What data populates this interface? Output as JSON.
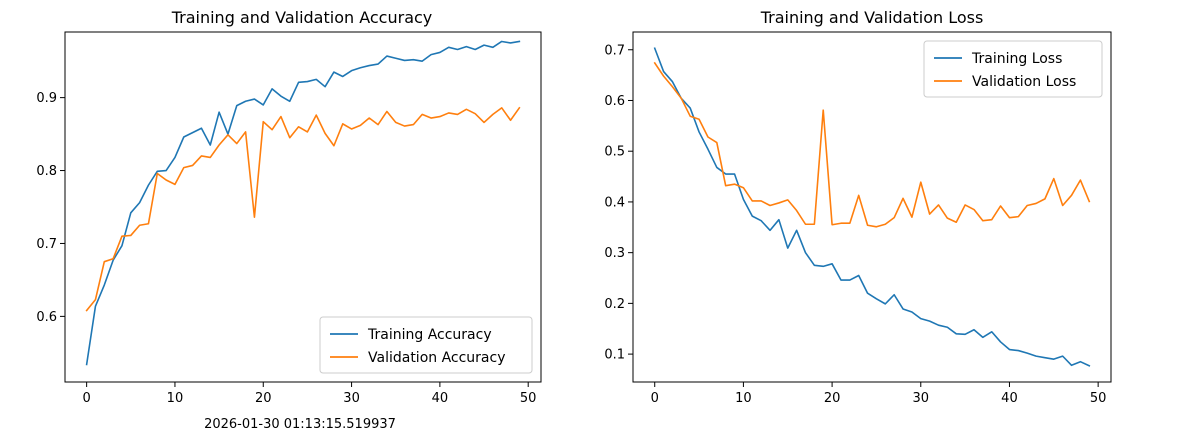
{
  "caption": "2026-01-30 01:13:15.519937",
  "chart_data": [
    {
      "type": "line",
      "title": "Training and Validation Accuracy",
      "xlabel": "",
      "ylabel": "",
      "xlim": [
        -2.45,
        51.45
      ],
      "ylim": [
        0.51,
        0.99
      ],
      "xticks": [
        0,
        10,
        20,
        30,
        40,
        50
      ],
      "yticks": [
        0.6,
        0.7,
        0.8,
        0.9
      ],
      "ytick_labels": [
        "0.6",
        "0.7",
        "0.8",
        "0.9"
      ],
      "legend_position": "lower-right",
      "x": [
        0,
        1,
        2,
        3,
        4,
        5,
        6,
        7,
        8,
        9,
        10,
        11,
        12,
        13,
        14,
        15,
        16,
        17,
        18,
        19,
        20,
        21,
        22,
        23,
        24,
        25,
        26,
        27,
        28,
        29,
        30,
        31,
        32,
        33,
        34,
        35,
        36,
        37,
        38,
        39,
        40,
        41,
        42,
        43,
        44,
        45,
        46,
        47,
        48,
        49
      ],
      "series": [
        {
          "name": "Training Accuracy",
          "color": "#1f77b4",
          "values": [
            0.534,
            0.614,
            0.643,
            0.677,
            0.697,
            0.742,
            0.756,
            0.78,
            0.799,
            0.8,
            0.818,
            0.846,
            0.852,
            0.858,
            0.835,
            0.88,
            0.85,
            0.889,
            0.895,
            0.898,
            0.89,
            0.912,
            0.902,
            0.895,
            0.921,
            0.922,
            0.925,
            0.915,
            0.935,
            0.929,
            0.937,
            0.941,
            0.944,
            0.946,
            0.957,
            0.954,
            0.951,
            0.952,
            0.95,
            0.959,
            0.962,
            0.969,
            0.966,
            0.97,
            0.966,
            0.972,
            0.969,
            0.977,
            0.975,
            0.977
          ]
        },
        {
          "name": "Validation Accuracy",
          "color": "#ff7f0e",
          "values": [
            0.608,
            0.623,
            0.675,
            0.679,
            0.71,
            0.711,
            0.725,
            0.727,
            0.796,
            0.787,
            0.781,
            0.804,
            0.807,
            0.82,
            0.818,
            0.835,
            0.849,
            0.837,
            0.853,
            0.736,
            0.867,
            0.856,
            0.874,
            0.845,
            0.86,
            0.853,
            0.876,
            0.851,
            0.834,
            0.864,
            0.857,
            0.862,
            0.872,
            0.863,
            0.881,
            0.866,
            0.861,
            0.863,
            0.877,
            0.872,
            0.874,
            0.879,
            0.877,
            0.884,
            0.878,
            0.866,
            0.877,
            0.886,
            0.869,
            0.886
          ]
        }
      ]
    },
    {
      "type": "line",
      "title": "Training and Validation Loss",
      "xlabel": "",
      "ylabel": "",
      "xlim": [
        -2.45,
        51.45
      ],
      "ylim": [
        0.045,
        0.735
      ],
      "xticks": [
        0,
        10,
        20,
        30,
        40,
        50
      ],
      "yticks": [
        0.1,
        0.2,
        0.3,
        0.4,
        0.5,
        0.6,
        0.7
      ],
      "ytick_labels": [
        "0.1",
        "0.2",
        "0.3",
        "0.4",
        "0.5",
        "0.6",
        "0.7"
      ],
      "legend_position": "upper-right",
      "x": [
        0,
        1,
        2,
        3,
        4,
        5,
        6,
        7,
        8,
        9,
        10,
        11,
        12,
        13,
        14,
        15,
        16,
        17,
        18,
        19,
        20,
        21,
        22,
        23,
        24,
        25,
        26,
        27,
        28,
        29,
        30,
        31,
        32,
        33,
        34,
        35,
        36,
        37,
        38,
        39,
        40,
        41,
        42,
        43,
        44,
        45,
        46,
        47,
        48,
        49
      ],
      "series": [
        {
          "name": "Training Loss",
          "color": "#1f77b4",
          "values": [
            0.703,
            0.657,
            0.637,
            0.604,
            0.585,
            0.538,
            0.504,
            0.468,
            0.455,
            0.455,
            0.405,
            0.372,
            0.363,
            0.344,
            0.365,
            0.309,
            0.344,
            0.3,
            0.275,
            0.273,
            0.278,
            0.246,
            0.246,
            0.255,
            0.22,
            0.209,
            0.199,
            0.217,
            0.189,
            0.183,
            0.17,
            0.165,
            0.157,
            0.153,
            0.14,
            0.139,
            0.148,
            0.133,
            0.144,
            0.124,
            0.109,
            0.107,
            0.102,
            0.096,
            0.093,
            0.09,
            0.096,
            0.078,
            0.085,
            0.077
          ]
        },
        {
          "name": "Validation Loss",
          "color": "#ff7f0e",
          "values": [
            0.674,
            0.648,
            0.627,
            0.604,
            0.569,
            0.563,
            0.528,
            0.517,
            0.432,
            0.435,
            0.428,
            0.402,
            0.402,
            0.393,
            0.398,
            0.404,
            0.383,
            0.356,
            0.356,
            0.581,
            0.355,
            0.358,
            0.358,
            0.413,
            0.354,
            0.351,
            0.356,
            0.369,
            0.407,
            0.37,
            0.439,
            0.376,
            0.394,
            0.368,
            0.36,
            0.394,
            0.385,
            0.363,
            0.365,
            0.392,
            0.369,
            0.371,
            0.393,
            0.397,
            0.406,
            0.446,
            0.393,
            0.413,
            0.443,
            0.401
          ]
        }
      ]
    }
  ]
}
